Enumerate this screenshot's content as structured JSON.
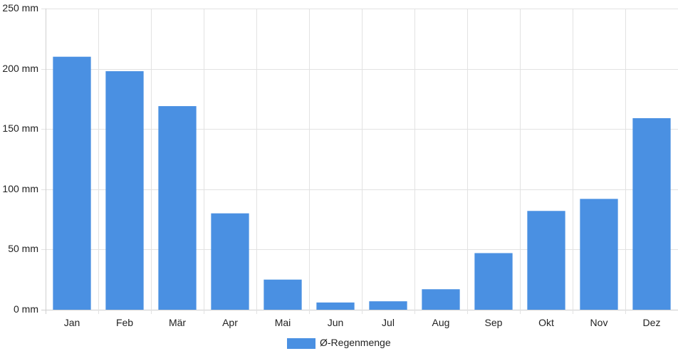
{
  "chart_data": {
    "type": "bar",
    "categories": [
      "Jan",
      "Feb",
      "Mär",
      "Apr",
      "Mai",
      "Jun",
      "Jul",
      "Aug",
      "Sep",
      "Okt",
      "Nov",
      "Dez"
    ],
    "series": [
      {
        "name": "Ø-Regenmenge",
        "values": [
          210,
          198,
          169,
          80,
          25,
          6,
          7,
          17,
          47,
          82,
          92,
          159
        ],
        "color": "#4a90e2"
      }
    ],
    "y_ticks": [
      "0 mm",
      "50 mm",
      "100 mm",
      "150 mm",
      "200 mm",
      "250 mm"
    ],
    "ylim": [
      0,
      250
    ],
    "y_unit": "mm",
    "grid": true,
    "legend": "bottom-center"
  }
}
